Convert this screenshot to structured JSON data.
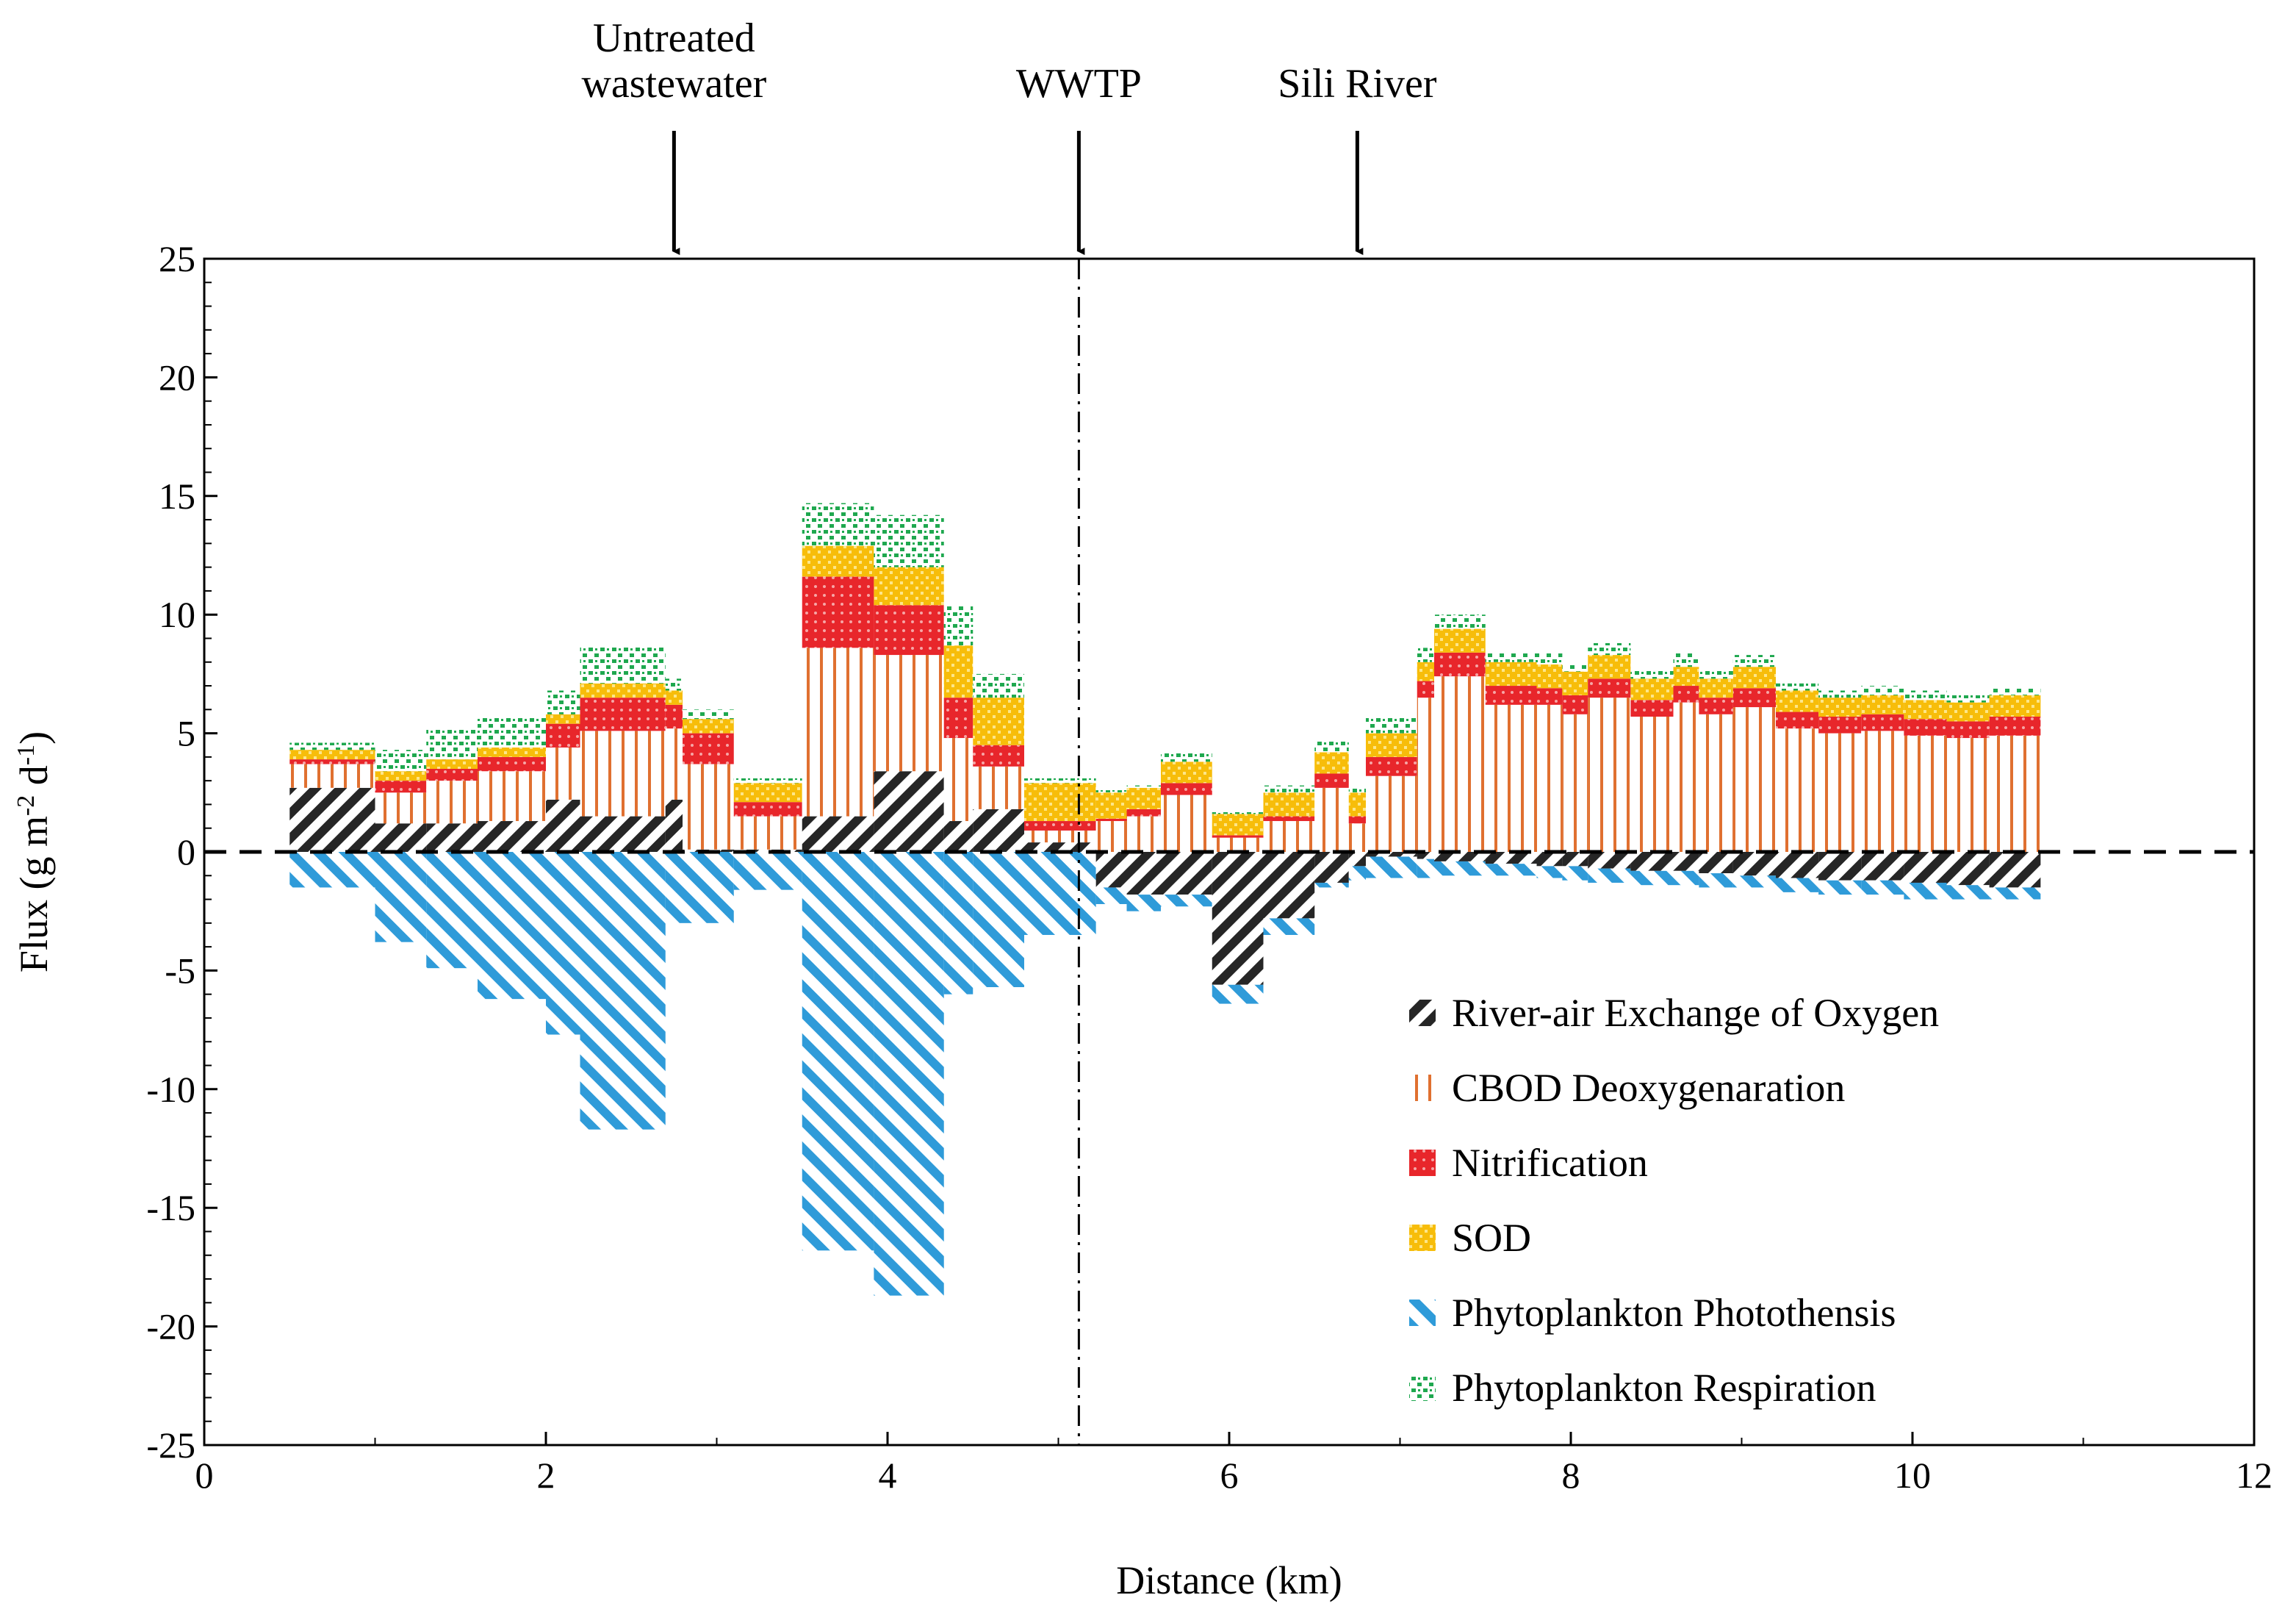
{
  "chart_data": {
    "type": "bar",
    "stacked": true,
    "xlabel": "Distance (km)",
    "ylabel": {
      "base": "Flux (g m",
      "sup1": "-2",
      "mid": " d",
      "sup2": "-1",
      "end": ")"
    },
    "xlim": [
      0,
      12
    ],
    "ylim": [
      -25,
      25
    ],
    "x_ticks": [
      0,
      2,
      4,
      6,
      8,
      10,
      12
    ],
    "y_ticks": [
      25,
      20,
      15,
      10,
      5,
      0,
      -5,
      -10,
      -15,
      -20,
      -25
    ],
    "grid": false,
    "legend_position": "bottom-right",
    "annotations": [
      {
        "id": "untreated",
        "lines": [
          "Untreated",
          "wastewater"
        ],
        "x": 2.75
      },
      {
        "id": "wwtp",
        "lines": [
          "WWTP"
        ],
        "x": 5.12,
        "vertical_line": true
      },
      {
        "id": "sili",
        "lines": [
          "Sili River"
        ],
        "x": 6.75
      }
    ],
    "series": [
      {
        "key": "rax",
        "name": "River-air Exchange of Oxygen",
        "color": "#262626"
      },
      {
        "key": "cbod",
        "name": "CBOD Deoxygenaration",
        "color": "#e07030"
      },
      {
        "key": "nit",
        "name": "Nitrification",
        "color": "#e8262b"
      },
      {
        "key": "sod",
        "name": "SOD",
        "color": "#f7bd0a"
      },
      {
        "key": "photo",
        "name": "Phytoplankton Photothensis",
        "color": "#2f9bd9"
      },
      {
        "key": "resp",
        "name": "Phytoplankton Respiration",
        "color": "#1fa84f"
      }
    ],
    "segments": [
      {
        "x0": 0.5,
        "x1": 1.0,
        "rax": 2.7,
        "cbod": 1.0,
        "nit": 0.2,
        "sod": 0.4,
        "resp": 0.3,
        "photo": -1.5
      },
      {
        "x0": 1.0,
        "x1": 1.3,
        "rax": 1.2,
        "cbod": 1.3,
        "nit": 0.5,
        "sod": 0.4,
        "resp": 0.9,
        "photo": -3.8
      },
      {
        "x0": 1.3,
        "x1": 1.6,
        "rax": 1.2,
        "cbod": 1.8,
        "nit": 0.5,
        "sod": 0.4,
        "resp": 1.3,
        "photo": -4.9
      },
      {
        "x0": 1.6,
        "x1": 2.0,
        "rax": 1.3,
        "cbod": 2.1,
        "nit": 0.6,
        "sod": 0.4,
        "resp": 1.3,
        "photo": -6.2
      },
      {
        "x0": 2.0,
        "x1": 2.2,
        "rax": 2.2,
        "cbod": 2.2,
        "nit": 1.0,
        "sod": 0.4,
        "resp": 1.0,
        "photo": -7.7
      },
      {
        "x0": 2.2,
        "x1": 2.7,
        "rax": 1.5,
        "cbod": 3.6,
        "nit": 1.4,
        "sod": 0.6,
        "resp": 1.6,
        "photo": -11.7
      },
      {
        "x0": 2.7,
        "x1": 2.8,
        "rax": 2.2,
        "cbod": 3.0,
        "nit": 1.0,
        "sod": 0.6,
        "resp": 0.5,
        "photo": -3.0
      },
      {
        "x0": 2.8,
        "x1": 3.1,
        "rax": 0.1,
        "cbod": 3.6,
        "nit": 1.3,
        "sod": 0.6,
        "resp": 0.4,
        "photo": -3.0
      },
      {
        "x0": 3.1,
        "x1": 3.5,
        "rax": 0.1,
        "cbod": 1.4,
        "nit": 0.6,
        "sod": 0.8,
        "resp": 0.2,
        "photo": -1.6
      },
      {
        "x0": 3.5,
        "x1": 3.92,
        "rax": 1.5,
        "cbod": 7.1,
        "nit": 3.0,
        "sod": 1.3,
        "resp": 1.8,
        "photo": -16.8
      },
      {
        "x0": 3.92,
        "x1": 4.33,
        "rax": 3.4,
        "cbod": 4.9,
        "nit": 2.1,
        "sod": 1.6,
        "resp": 2.2,
        "photo": -18.7
      },
      {
        "x0": 4.33,
        "x1": 4.5,
        "rax": 1.3,
        "cbod": 3.5,
        "nit": 1.7,
        "sod": 2.2,
        "resp": 1.7,
        "photo": -6.0
      },
      {
        "x0": 4.5,
        "x1": 4.8,
        "rax": 1.8,
        "cbod": 1.8,
        "nit": 0.9,
        "sod": 2.0,
        "resp": 1.0,
        "photo": -5.7
      },
      {
        "x0": 4.8,
        "x1": 5.22,
        "rax": 0.4,
        "cbod": 0.5,
        "nit": 0.4,
        "sod": 1.6,
        "resp": 0.2,
        "photo": -3.5
      },
      {
        "x0": 5.22,
        "x1": 5.4,
        "rax": -1.5,
        "cbod": 1.3,
        "nit": 0.1,
        "sod": 1.1,
        "resp": 0.1,
        "photo": -0.7
      },
      {
        "x0": 5.4,
        "x1": 5.6,
        "rax": -1.8,
        "cbod": 1.5,
        "nit": 0.3,
        "sod": 0.9,
        "resp": 0.1,
        "photo": -0.7
      },
      {
        "x0": 5.6,
        "x1": 5.9,
        "rax": -1.8,
        "cbod": 2.4,
        "nit": 0.5,
        "sod": 0.9,
        "resp": 0.4,
        "photo": -0.5
      },
      {
        "x0": 5.9,
        "x1": 6.2,
        "rax": -5.6,
        "cbod": 0.6,
        "nit": 0.1,
        "sod": 0.9,
        "resp": 0.1,
        "photo": -0.8
      },
      {
        "x0": 6.2,
        "x1": 6.5,
        "rax": -2.8,
        "cbod": 1.3,
        "nit": 0.2,
        "sod": 1.0,
        "resp": 0.3,
        "photo": -0.7
      },
      {
        "x0": 6.5,
        "x1": 6.7,
        "rax": -1.3,
        "cbod": 2.7,
        "nit": 0.6,
        "sod": 0.9,
        "resp": 0.5,
        "photo": -0.2
      },
      {
        "x0": 6.7,
        "x1": 6.8,
        "rax": -0.6,
        "cbod": 1.2,
        "nit": 0.3,
        "sod": 1.0,
        "resp": 0.2,
        "photo": -0.6
      },
      {
        "x0": 6.8,
        "x1": 7.1,
        "rax": -0.2,
        "cbod": 3.2,
        "nit": 0.8,
        "sod": 1.0,
        "resp": 0.7,
        "photo": -0.9
      },
      {
        "x0": 7.1,
        "x1": 7.2,
        "rax": -0.3,
        "cbod": 6.5,
        "nit": 0.7,
        "sod": 0.8,
        "resp": 0.6,
        "photo": -0.8
      },
      {
        "x0": 7.2,
        "x1": 7.5,
        "rax": -0.4,
        "cbod": 7.4,
        "nit": 1.0,
        "sod": 1.0,
        "resp": 0.6,
        "photo": -0.6
      },
      {
        "x0": 7.5,
        "x1": 7.8,
        "rax": -0.5,
        "cbod": 6.2,
        "nit": 0.8,
        "sod": 1.0,
        "resp": 0.4,
        "photo": -0.5
      },
      {
        "x0": 7.8,
        "x1": 7.95,
        "rax": -0.6,
        "cbod": 6.2,
        "nit": 0.7,
        "sod": 1.0,
        "resp": 0.5,
        "photo": -0.5
      },
      {
        "x0": 7.95,
        "x1": 8.1,
        "rax": -0.6,
        "cbod": 5.8,
        "nit": 0.8,
        "sod": 1.0,
        "resp": 0.3,
        "photo": -0.6
      },
      {
        "x0": 8.1,
        "x1": 8.35,
        "rax": -0.7,
        "cbod": 6.5,
        "nit": 0.8,
        "sod": 1.0,
        "resp": 0.5,
        "photo": -0.6
      },
      {
        "x0": 8.35,
        "x1": 8.6,
        "rax": -0.8,
        "cbod": 5.7,
        "nit": 0.7,
        "sod": 0.9,
        "resp": 0.4,
        "photo": -0.6
      },
      {
        "x0": 8.6,
        "x1": 8.75,
        "rax": -0.8,
        "cbod": 6.3,
        "nit": 0.7,
        "sod": 0.8,
        "resp": 0.6,
        "photo": -0.6
      },
      {
        "x0": 8.75,
        "x1": 8.95,
        "rax": -0.9,
        "cbod": 5.8,
        "nit": 0.7,
        "sod": 0.8,
        "resp": 0.4,
        "photo": -0.6
      },
      {
        "x0": 8.95,
        "x1": 9.2,
        "rax": -1.0,
        "cbod": 6.1,
        "nit": 0.8,
        "sod": 0.9,
        "resp": 0.5,
        "photo": -0.5
      },
      {
        "x0": 9.2,
        "x1": 9.45,
        "rax": -1.1,
        "cbod": 5.2,
        "nit": 0.7,
        "sod": 0.9,
        "resp": 0.3,
        "photo": -0.6
      },
      {
        "x0": 9.45,
        "x1": 9.7,
        "rax": -1.2,
        "cbod": 5.0,
        "nit": 0.7,
        "sod": 0.8,
        "resp": 0.3,
        "photo": -0.6
      },
      {
        "x0": 9.7,
        "x1": 9.95,
        "rax": -1.2,
        "cbod": 5.1,
        "nit": 0.7,
        "sod": 0.8,
        "resp": 0.4,
        "photo": -0.6
      },
      {
        "x0": 9.95,
        "x1": 10.2,
        "rax": -1.3,
        "cbod": 4.9,
        "nit": 0.7,
        "sod": 0.8,
        "resp": 0.4,
        "photo": -0.7
      },
      {
        "x0": 10.2,
        "x1": 10.45,
        "rax": -1.4,
        "cbod": 4.8,
        "nit": 0.7,
        "sod": 0.8,
        "resp": 0.3,
        "photo": -0.6
      },
      {
        "x0": 10.45,
        "x1": 10.75,
        "rax": -1.5,
        "cbod": 4.9,
        "nit": 0.8,
        "sod": 0.9,
        "resp": 0.3,
        "photo": -0.5
      }
    ]
  }
}
